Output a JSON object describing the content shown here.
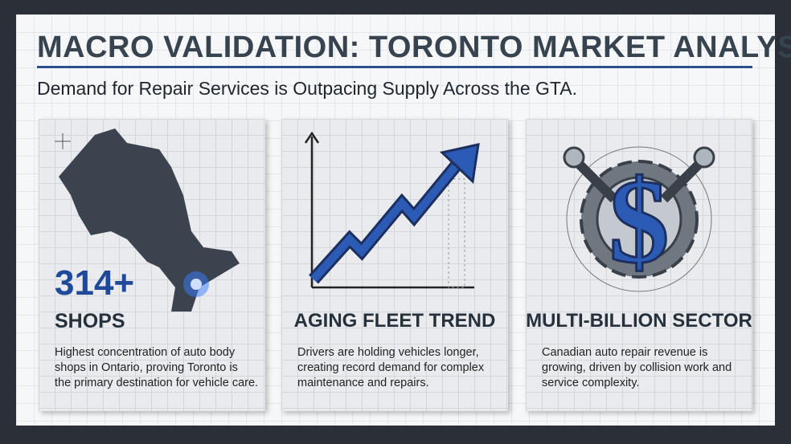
{
  "header": {
    "title": "MACRO VALIDATION: TORONTO MARKET ANALYSIS",
    "subtitle": "Demand for Repair Services is Outpacing Supply Across the GTA."
  },
  "cards": [
    {
      "stat": "314+",
      "heading": "SHOPS",
      "body": [
        "Highest concentration of auto body",
        "shops in Ontario, proving Toronto is",
        "the primary destination for vehicle care."
      ]
    },
    {
      "heading": "AGING FLEET TREND",
      "body": [
        "Drivers are holding vehicles longer,",
        "creating record demand for complex",
        "maintenance and repairs."
      ]
    },
    {
      "heading": "MULTI-BILLION SECTOR",
      "body": [
        "Canadian auto repair revenue is",
        "growing, driven by collision work and",
        "service complexity."
      ]
    }
  ]
}
